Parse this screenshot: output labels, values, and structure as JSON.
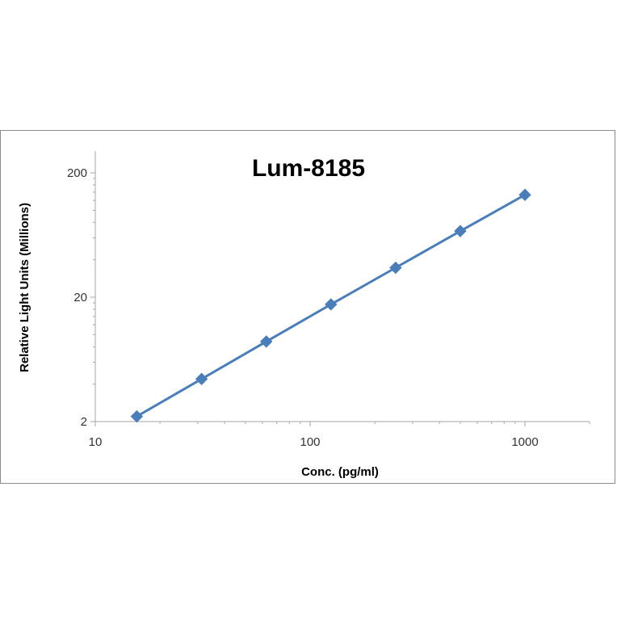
{
  "chart_data": {
    "type": "line",
    "title": "Lum-8185",
    "xlabel": "Conc. (pg/ml)",
    "ylabel": "Relative Light Units (Millions)",
    "xscale": "log",
    "yscale": "log",
    "xlim": [
      10,
      2000
    ],
    "ylim": [
      2,
      200
    ],
    "xticks": [
      10,
      100,
      1000
    ],
    "xtick_labels": [
      "10",
      "100",
      "1000"
    ],
    "yticks": [
      2,
      20,
      200
    ],
    "ytick_labels": [
      "2",
      "20",
      "200"
    ],
    "grid": false,
    "legend": false,
    "marker": "diamond",
    "colors": {
      "series": "#4a7ebb",
      "axis": "#a6a6a6",
      "frame": "#8c8c8c"
    },
    "series": [
      {
        "x": [
          15.6,
          31.25,
          62.5,
          125,
          250,
          500,
          1000
        ],
        "y": [
          2.2,
          4.4,
          8.8,
          17.5,
          34.5,
          68,
          133
        ]
      }
    ]
  }
}
